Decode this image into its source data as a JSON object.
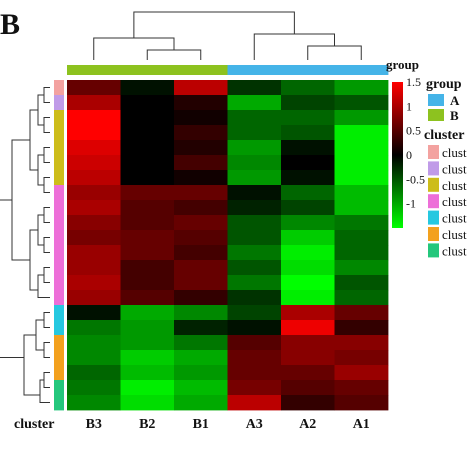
{
  "panel_label": "B",
  "chart_data": {
    "type": "heatmap",
    "columns": [
      "B3",
      "B2",
      "B1",
      "A3",
      "A2",
      "A1"
    ],
    "column_groups": [
      "B",
      "B",
      "B",
      "A",
      "A",
      "A"
    ],
    "row_clusters": [
      1,
      2,
      3,
      3,
      3,
      3,
      3,
      4,
      4,
      4,
      4,
      4,
      4,
      4,
      4,
      5,
      5,
      6,
      6,
      6,
      7,
      7
    ],
    "values": [
      [
        0.6,
        -0.1,
        1.1,
        -0.3,
        -0.6,
        -0.9
      ],
      [
        1.0,
        0.0,
        0.2,
        -1.0,
        -0.4,
        -0.5
      ],
      [
        1.5,
        0.0,
        0.1,
        -0.6,
        -0.6,
        -0.9
      ],
      [
        1.5,
        0.0,
        0.3,
        -0.6,
        -0.5,
        -1.4
      ],
      [
        1.3,
        0.0,
        0.2,
        -0.9,
        -0.1,
        -1.4
      ],
      [
        1.2,
        0.0,
        0.4,
        -0.8,
        0.0,
        -1.4
      ],
      [
        1.1,
        0.0,
        0.1,
        -0.9,
        -0.1,
        -1.4
      ],
      [
        0.9,
        0.6,
        0.6,
        -0.1,
        -0.6,
        -1.1
      ],
      [
        1.0,
        0.5,
        0.4,
        -0.2,
        -0.4,
        -1.1
      ],
      [
        0.8,
        0.5,
        0.6,
        -0.5,
        -0.8,
        -0.7
      ],
      [
        0.7,
        0.6,
        0.5,
        -0.5,
        -1.2,
        -0.6
      ],
      [
        0.9,
        0.6,
        0.4,
        -0.7,
        -1.4,
        -0.6
      ],
      [
        0.9,
        0.4,
        0.6,
        -0.5,
        -1.3,
        -0.8
      ],
      [
        1.0,
        0.4,
        0.6,
        -0.7,
        -1.5,
        -0.5
      ],
      [
        0.9,
        0.5,
        0.3,
        -0.3,
        -1.4,
        -0.6
      ],
      [
        -0.1,
        -1.0,
        -0.8,
        -0.4,
        1.0,
        0.6
      ],
      [
        -0.7,
        -0.9,
        -0.2,
        -0.1,
        1.4,
        0.3
      ],
      [
        -0.8,
        -0.9,
        -0.7,
        0.5,
        0.8,
        0.8
      ],
      [
        -0.8,
        -1.2,
        -1.0,
        0.6,
        0.8,
        0.7
      ],
      [
        -0.6,
        -1.1,
        -0.9,
        0.6,
        0.6,
        0.9
      ],
      [
        -0.7,
        -1.4,
        -1.1,
        0.7,
        0.5,
        0.6
      ],
      [
        -0.8,
        -1.3,
        -1.0,
        1.1,
        0.3,
        0.5
      ]
    ],
    "color_scale": {
      "min": -1.5,
      "max": 1.5,
      "colors": [
        "#00ff00",
        "#000000",
        "#ff0000"
      ],
      "tick_values": [
        1.5,
        1,
        0.5,
        0,
        -0.5,
        -1
      ],
      "tick_labels": [
        "1.5",
        "1",
        "0.5",
        "0",
        "-0.5",
        "-1"
      ]
    },
    "group_annotation": {
      "title": "group",
      "items": [
        {
          "label": "A",
          "color": "#45b4e8"
        },
        {
          "label": "B",
          "color": "#8dc21f"
        }
      ]
    },
    "cluster_annotation": {
      "title": "cluster",
      "axis_label": "cluster",
      "items": [
        {
          "label": "clust",
          "color": "#f3a2a0"
        },
        {
          "label": "clust",
          "color": "#c09be8"
        },
        {
          "label": "clust",
          "color": "#cdbd1a"
        },
        {
          "label": "clust",
          "color": "#ed6fd8"
        },
        {
          "label": "clust",
          "color": "#26c8e0"
        },
        {
          "label": "clust",
          "color": "#f3a11e"
        },
        {
          "label": "clust",
          "color": "#24c77c"
        }
      ]
    },
    "legend_position": "right",
    "grid": false
  }
}
